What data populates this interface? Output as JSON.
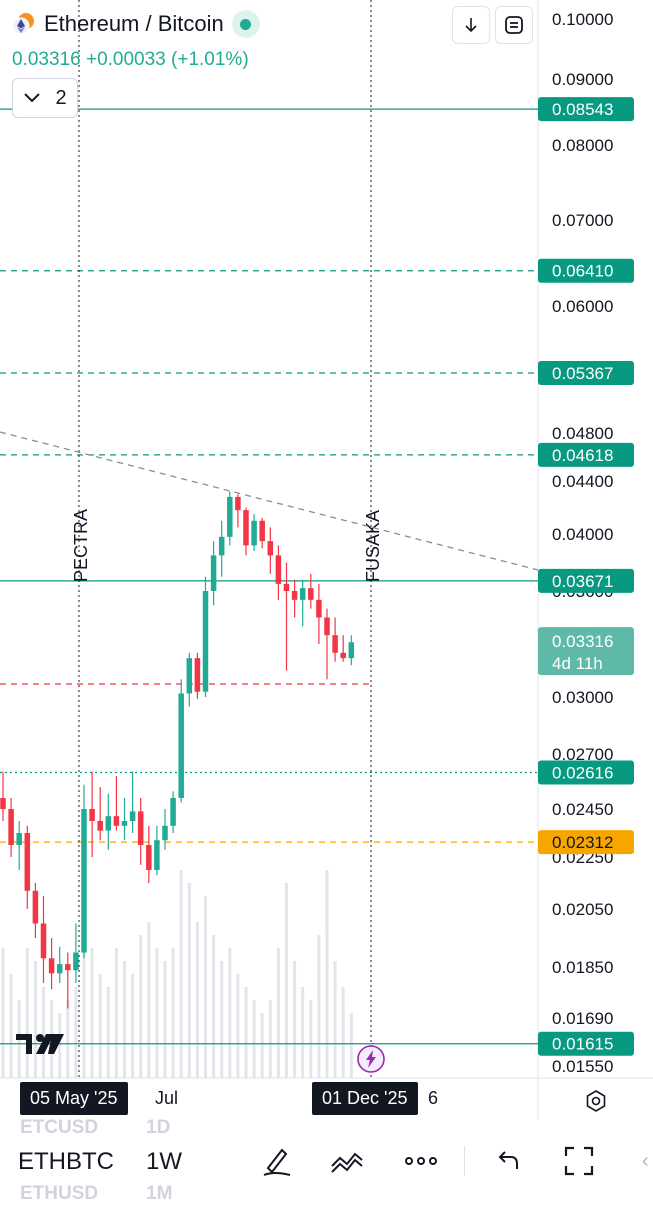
{
  "header": {
    "title": "Ethereum / Bitcoin",
    "price": "0.03316",
    "change": "+0.00033",
    "change_pct": "(+1.01%)",
    "collapse_count": "2",
    "up_color": "#22ab94",
    "down_color": "#f23645"
  },
  "price_scale": {
    "labels": [
      "0.10000",
      "0.09000",
      "0.08000",
      "0.07000",
      "0.06000",
      "0.04800",
      "0.04400",
      "0.04000",
      "0.03600",
      "0.03000",
      "0.02700",
      "0.02450",
      "0.02250",
      "0.02050",
      "0.01850",
      "0.01690",
      "0.01550"
    ],
    "current_price": "0.03316",
    "countdown": "4d 11h"
  },
  "horizontal_levels": [
    {
      "price": "0.08543",
      "style": "solid",
      "color": "#089981"
    },
    {
      "price": "0.06410",
      "style": "dashed",
      "color": "#089981"
    },
    {
      "price": "0.05367",
      "style": "dashed",
      "color": "#089981"
    },
    {
      "price": "0.04618",
      "style": "dashed",
      "color": "#089981"
    },
    {
      "price": "0.03671",
      "style": "solid",
      "color": "#089981"
    },
    {
      "price": "0.02616",
      "style": "dotted",
      "color": "#089981"
    },
    {
      "price": "0.02312",
      "style": "dashed",
      "color": "#f7a600"
    },
    {
      "price": "0.01615",
      "style": "solid",
      "color": "#089981"
    }
  ],
  "vertical_markers": [
    {
      "label": "PECTRA"
    },
    {
      "label": "FUSAKA"
    }
  ],
  "time_axis": {
    "labels": [
      "05 May '25",
      "Jul",
      "01 Dec '25",
      "6"
    ]
  },
  "bottom_toolbar": {
    "symbol": "ETHBTC",
    "interval": "1W",
    "symbol_above": "ETCUSD",
    "interval_above": "1D",
    "symbol_below": "ETHUSD",
    "interval_below": "1M"
  },
  "icons": {
    "download": "download-icon",
    "fullscreen": "fullscreen-icon",
    "settings": "settings-icon",
    "draw": "pen-icon",
    "indicators": "indicators-icon",
    "more": "more-icon",
    "undo": "undo-icon",
    "expand": "expand-icon",
    "flash": "flash-icon"
  }
}
